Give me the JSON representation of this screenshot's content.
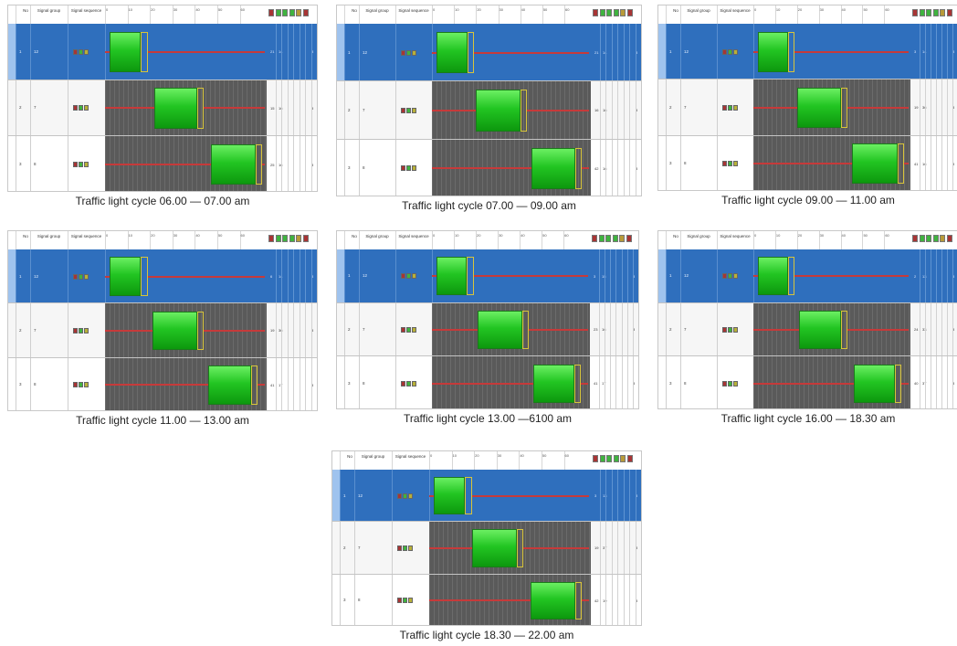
{
  "colors": {
    "selected_row": "#2f6fbd",
    "grid_dark": "#5a5a5a",
    "red_phase": "#c63a3a",
    "green_phase": "#22c522",
    "amber_phase": "#d8c43a"
  },
  "header": {
    "no": "No",
    "signal_group": "Signal group",
    "signal_sequence": "Signal sequence",
    "ticks": [
      "0",
      "10",
      "20",
      "30",
      "40",
      "50",
      "60"
    ]
  },
  "panels": [
    {
      "caption": "Traffic light cycle 06.00 — 07.00 am",
      "rows": [
        {
          "no": "1",
          "group": "12",
          "green_start": 2,
          "green_end": 16,
          "amber_end": 19,
          "offset": "21",
          "duration": "14",
          "extra": "3"
        },
        {
          "no": "2",
          "group": "7",
          "green_start": 22,
          "green_end": 41,
          "amber_end": 44,
          "offset": "15",
          "duration": "16",
          "extra": "3"
        },
        {
          "no": "3",
          "group": "8",
          "green_start": 47,
          "green_end": 67,
          "amber_end": 70,
          "offset": "25",
          "duration": "16",
          "extra": "3"
        }
      ]
    },
    {
      "caption": "Traffic light cycle 07.00 — 09.00 am",
      "rows": [
        {
          "no": "1",
          "group": "12",
          "green_start": 2,
          "green_end": 16,
          "amber_end": 19,
          "offset": "21",
          "duration": "14",
          "extra": "3"
        },
        {
          "no": "2",
          "group": "7",
          "green_start": 20,
          "green_end": 40,
          "amber_end": 43,
          "offset": "16",
          "duration": "16",
          "extra": "3"
        },
        {
          "no": "3",
          "group": "8",
          "green_start": 45,
          "green_end": 65,
          "amber_end": 68,
          "offset": "42",
          "duration": "16",
          "extra": "3"
        }
      ]
    },
    {
      "caption": "Traffic light cycle 09.00 — 11.00 am",
      "rows": [
        {
          "no": "1",
          "group": "12",
          "green_start": 2,
          "green_end": 16,
          "amber_end": 19,
          "offset": "3",
          "duration": "14",
          "extra": "3"
        },
        {
          "no": "2",
          "group": "7",
          "green_start": 20,
          "green_end": 40,
          "amber_end": 43,
          "offset": "19",
          "duration": "36",
          "extra": "3"
        },
        {
          "no": "3",
          "group": "8",
          "green_start": 45,
          "green_end": 66,
          "amber_end": 69,
          "offset": "41",
          "duration": "16",
          "extra": "3"
        }
      ]
    },
    {
      "caption": "Traffic light cycle 11.00 — 13.00 am",
      "rows": [
        {
          "no": "1",
          "group": "12",
          "green_start": 2,
          "green_end": 16,
          "amber_end": 19,
          "offset": "6",
          "duration": "14",
          "extra": "3"
        },
        {
          "no": "2",
          "group": "7",
          "green_start": 21,
          "green_end": 41,
          "amber_end": 44,
          "offset": "19",
          "duration": "36",
          "extra": "3"
        },
        {
          "no": "3",
          "group": "8",
          "green_start": 46,
          "green_end": 65,
          "amber_end": 68,
          "offset": "41",
          "duration": "17",
          "extra": "3"
        }
      ]
    },
    {
      "caption": "Traffic light cycle 13.00 —6100 am",
      "rows": [
        {
          "no": "1",
          "group": "12",
          "green_start": 2,
          "green_end": 16,
          "amber_end": 19,
          "offset": "3",
          "duration": "15",
          "extra": "3"
        },
        {
          "no": "2",
          "group": "7",
          "green_start": 21,
          "green_end": 41,
          "amber_end": 44,
          "offset": "23",
          "duration": "16",
          "extra": "3"
        },
        {
          "no": "3",
          "group": "8",
          "green_start": 46,
          "green_end": 65,
          "amber_end": 68,
          "offset": "41",
          "duration": "17",
          "extra": "3"
        }
      ]
    },
    {
      "caption": "Traffic light cycle 16.00 — 18.30 am",
      "rows": [
        {
          "no": "1",
          "group": "12",
          "green_start": 2,
          "green_end": 16,
          "amber_end": 19,
          "offset": "2",
          "duration": "13",
          "extra": "3"
        },
        {
          "no": "2",
          "group": "7",
          "green_start": 21,
          "green_end": 40,
          "amber_end": 43,
          "offset": "24",
          "duration": "33",
          "extra": "3"
        },
        {
          "no": "3",
          "group": "8",
          "green_start": 46,
          "green_end": 65,
          "amber_end": 68,
          "offset": "40",
          "duration": "37",
          "extra": "3"
        }
      ]
    },
    {
      "caption": "Traffic light cycle 18.30 — 22.00 am",
      "rows": [
        {
          "no": "1",
          "group": "12",
          "green_start": 2,
          "green_end": 16,
          "amber_end": 19,
          "offset": "3",
          "duration": "13",
          "extra": "3"
        },
        {
          "no": "2",
          "group": "7",
          "green_start": 19,
          "green_end": 39,
          "amber_end": 42,
          "offset": "19",
          "duration": "37",
          "extra": "3"
        },
        {
          "no": "3",
          "group": "8",
          "green_start": 45,
          "green_end": 65,
          "amber_end": 68,
          "offset": "42",
          "duration": "19",
          "extra": "3"
        }
      ]
    }
  ]
}
